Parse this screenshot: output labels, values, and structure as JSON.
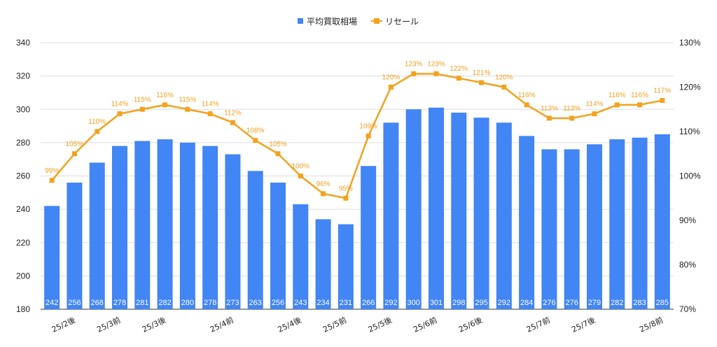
{
  "chart_data": {
    "type": "bar",
    "categories": [
      "",
      "25/2後",
      "",
      "25/3前",
      "",
      "25/3後",
      "",
      "",
      "25/4前",
      "",
      "",
      "25/4後",
      "",
      "25/5前",
      "",
      "25/5後",
      "",
      "25/6前",
      "",
      "25/6後",
      "",
      "",
      "25/7前",
      "",
      "25/7後",
      "",
      "",
      "25/8前"
    ],
    "series": [
      {
        "name": "平均買取相場",
        "type": "bar",
        "axis": "left",
        "color": "#4285f4",
        "values": [
          242,
          256,
          268,
          278,
          281,
          282,
          280,
          278,
          273,
          263,
          256,
          243,
          234,
          231,
          266,
          292,
          300,
          301,
          298,
          295,
          292,
          284,
          276,
          276,
          279,
          282,
          283,
          285
        ],
        "labels": [
          "242",
          "256",
          "268",
          "278",
          "281",
          "282",
          "280",
          "278",
          "273",
          "263",
          "256",
          "243",
          "234",
          "231",
          "266",
          "292",
          "300",
          "301",
          "298",
          "295",
          "292",
          "284",
          "276",
          "276",
          "279",
          "282",
          "283",
          "285"
        ]
      },
      {
        "name": "リセール",
        "type": "line",
        "axis": "right",
        "color": "#f4a21e",
        "values": [
          99,
          105,
          110,
          114,
          115,
          116,
          115,
          114,
          112,
          108,
          105,
          100,
          96,
          95,
          109,
          120,
          123,
          123,
          122,
          121,
          120,
          116,
          113,
          113,
          114,
          116,
          116,
          117
        ],
        "labels": [
          "99%",
          "105%",
          "110%",
          "114%",
          "115%",
          "116%",
          "115%",
          "114%",
          "112%",
          "108%",
          "105%",
          "100%",
          "96%",
          "95%",
          "109%",
          "120%",
          "123%",
          "123%",
          "122%",
          "121%",
          "120%",
          "116%",
          "113%",
          "113%",
          "114%",
          "116%",
          "116%",
          "117%"
        ]
      }
    ],
    "y_left": {
      "min": 180,
      "max": 340,
      "ticks": [
        "180",
        "200",
        "220",
        "240",
        "260",
        "280",
        "300",
        "320",
        "340"
      ]
    },
    "y_right": {
      "min": 70,
      "max": 130,
      "ticks": [
        "70%",
        "80%",
        "90%",
        "100%",
        "110%",
        "120%",
        "130%"
      ]
    },
    "grid": true,
    "legend": "top-center",
    "title": ""
  }
}
